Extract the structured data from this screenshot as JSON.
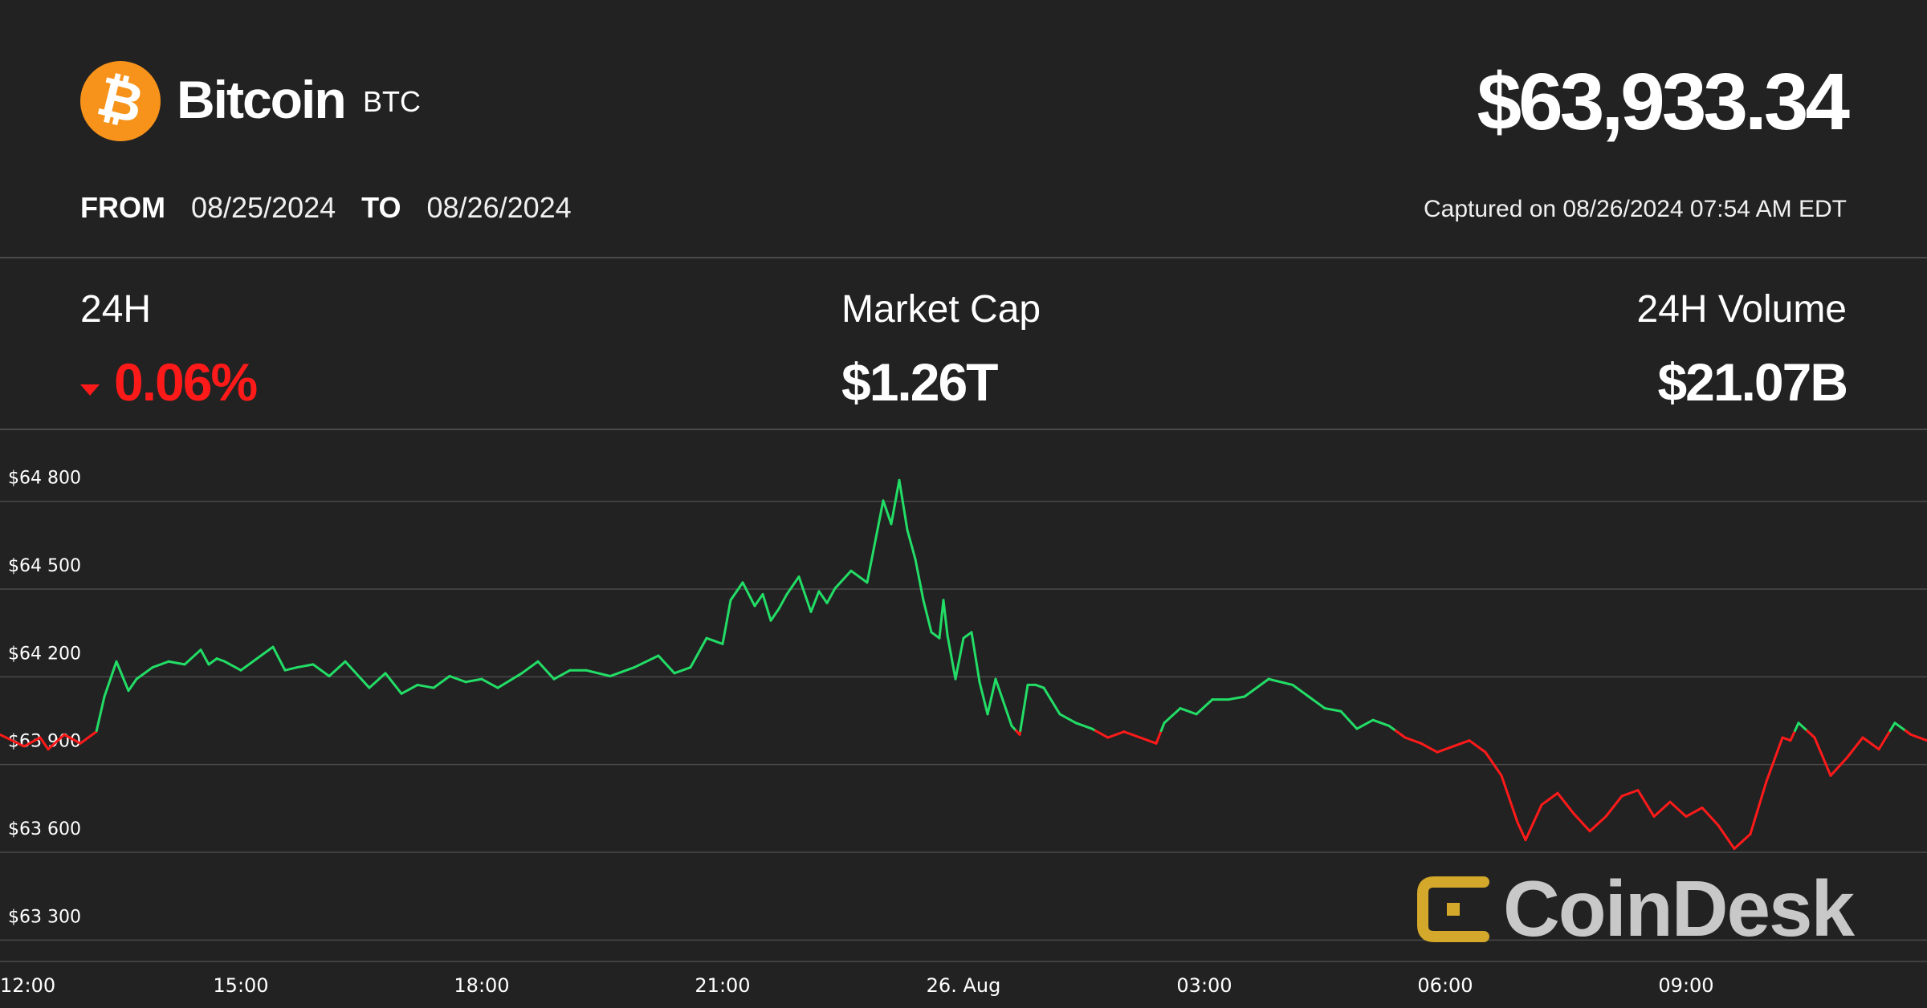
{
  "header": {
    "coin_name": "Bitcoin",
    "coin_symbol": "BTC",
    "logo_icon": "bitcoin-icon",
    "logo_glyph": "₿",
    "logo_color": "#f7931a",
    "price": "$63,933.34",
    "from_label": "FROM",
    "from_date": "08/25/2024",
    "to_label": "TO",
    "to_date": "08/26/2024",
    "captured": "Captured on 08/26/2024 07:54 AM EDT"
  },
  "stats": {
    "change_label": "24H",
    "change_value": "0.06%",
    "change_direction_icon": "caret-down-icon",
    "market_cap_label": "Market Cap",
    "market_cap_value": "$1.26T",
    "volume_label": "24H Volume",
    "volume_value": "$21.07B"
  },
  "colors": {
    "background": "#222222",
    "up": "#22dd66",
    "down": "#ff1a1a",
    "grid": "#4a4a4a"
  },
  "watermark": {
    "text": "CoinDesk",
    "icon": "coindesk-logo-icon",
    "icon_color": "#d4a82a"
  },
  "chart_data": {
    "type": "line",
    "title": "",
    "xlabel": "",
    "ylabel": "",
    "baseline": 63933.34,
    "ylim": [
      63150,
      64950
    ],
    "yticks": [
      64800,
      64500,
      64200,
      63900,
      63600,
      63300
    ],
    "ytick_labels": [
      "$64 800",
      "$64 500",
      "$64 200",
      "$63 900",
      "$63 600",
      "$63 300"
    ],
    "xlim": [
      0,
      24
    ],
    "xticks": [
      0,
      3,
      6,
      9,
      12,
      15,
      18,
      21
    ],
    "xtick_labels": [
      "12:00",
      "15:00",
      "18:00",
      "21:00",
      "26. Aug",
      "03:00",
      "06:00",
      "09:00"
    ],
    "grid": true,
    "legend": "none",
    "series": [
      {
        "x": [
          0,
          0.3,
          0.5,
          0.6,
          0.8,
          1.0,
          1.2,
          1.3,
          1.45,
          1.6,
          1.7,
          1.9,
          2.1,
          2.3,
          2.5,
          2.6,
          2.7,
          2.8,
          3.0,
          3.2,
          3.4,
          3.55,
          3.7,
          3.9,
          4.1,
          4.3,
          4.5,
          4.6,
          4.8,
          5.0,
          5.2,
          5.4,
          5.6,
          5.8,
          6.0,
          6.2,
          6.5,
          6.7,
          6.9,
          7.1,
          7.3,
          7.6,
          7.9,
          8.2,
          8.4,
          8.6,
          8.8,
          9.0,
          9.1,
          9.25,
          9.4,
          9.5,
          9.6,
          9.7,
          9.8,
          9.95,
          10.1,
          10.2,
          10.3,
          10.4,
          10.6,
          10.8,
          11.0,
          11.1,
          11.2,
          11.3,
          11.4,
          11.5,
          11.6,
          11.7,
          11.75,
          11.8,
          11.9,
          12.0,
          12.1,
          12.2,
          12.3,
          12.4,
          12.5,
          12.6,
          12.7,
          12.8,
          12.9,
          13.0,
          13.2,
          13.4,
          13.6,
          13.8,
          14.0,
          14.2,
          14.4,
          14.5,
          14.7,
          14.9,
          15.1,
          15.3,
          15.5,
          15.8,
          16.1,
          16.3,
          16.5,
          16.7,
          16.9,
          17.1,
          17.3,
          17.5,
          17.7,
          17.9,
          18.1,
          18.3,
          18.5,
          18.7,
          18.9,
          19.0,
          19.2,
          19.4,
          19.6,
          19.8,
          20.0,
          20.2,
          20.4,
          20.6,
          20.8,
          21.0,
          21.2,
          21.4,
          21.6,
          21.8,
          22.0,
          22.2,
          22.3,
          22.4,
          22.6,
          22.8,
          23.0,
          23.2,
          23.4,
          23.6,
          23.8,
          24.0
        ],
        "y": [
          63920,
          63880,
          63910,
          63870,
          63920,
          63890,
          63930,
          64050,
          64170,
          64070,
          64110,
          64150,
          64170,
          64160,
          64210,
          64160,
          64180,
          64170,
          64140,
          64180,
          64220,
          64140,
          64150,
          64160,
          64120,
          64170,
          64110,
          64080,
          64130,
          64060,
          64090,
          64080,
          64120,
          64100,
          64110,
          64080,
          64130,
          64170,
          64110,
          64140,
          64140,
          64120,
          64150,
          64190,
          64130,
          64150,
          64250,
          64230,
          64380,
          64440,
          64360,
          64400,
          64310,
          64350,
          64400,
          64460,
          64340,
          64410,
          64370,
          64420,
          64480,
          64440,
          64720,
          64640,
          64790,
          64620,
          64520,
          64380,
          64270,
          64250,
          64380,
          64260,
          64110,
          64250,
          64270,
          64100,
          63990,
          64110,
          64030,
          63950,
          63920,
          64090,
          64090,
          64080,
          63990,
          63960,
          63940,
          63910,
          63930,
          63910,
          63890,
          63960,
          64010,
          63990,
          64040,
          64040,
          64050,
          64110,
          64090,
          64050,
          64010,
          64000,
          63940,
          63970,
          63950,
          63910,
          63890,
          63860,
          63880,
          63900,
          63860,
          63780,
          63620,
          63560,
          63680,
          63720,
          63650,
          63590,
          63640,
          63710,
          63730,
          63640,
          63690,
          63640,
          63670,
          63610,
          63530,
          63580,
          63760,
          63910,
          63900,
          63960,
          63910,
          63780,
          63840,
          63910,
          63870,
          63960,
          63920,
          63900
        ]
      }
    ]
  }
}
